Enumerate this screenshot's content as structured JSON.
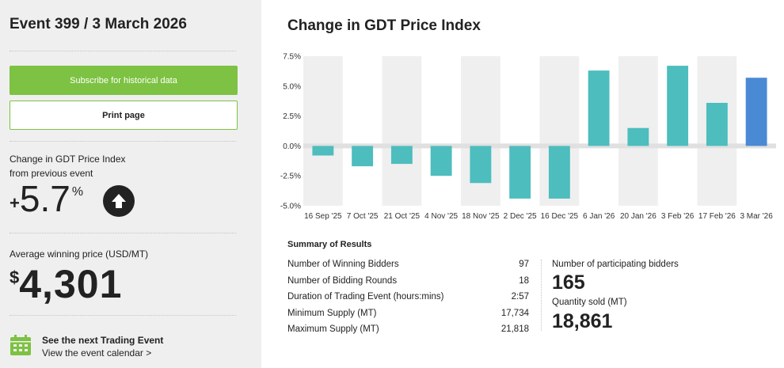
{
  "sidebar": {
    "event_title": "Event 399 / 3 March 2026",
    "subscribe_label": "Subscribe for historical data",
    "print_label": "Print page",
    "change_label_line1": "Change in GDT Price Index",
    "change_label_line2": "from previous event",
    "change_sign": "+",
    "change_value": "5.7",
    "change_unit": "%",
    "avg_label": "Average winning price (USD/MT)",
    "avg_currency": "$",
    "avg_value": "4,301",
    "next_event_title": "See the next Trading Event",
    "next_event_link": "View the event calendar >"
  },
  "main": {
    "chart_title": "Change in GDT Price Index",
    "summary": {
      "title": "Summary of Results",
      "rows": [
        {
          "label": "Number of Winning Bidders",
          "value": "97"
        },
        {
          "label": "Number of Bidding Rounds",
          "value": "18"
        },
        {
          "label": "Duration of Trading Event (hours:mins)",
          "value": "2:57"
        },
        {
          "label": "Minimum Supply (MT)",
          "value": "17,734"
        },
        {
          "label": "Maximum Supply (MT)",
          "value": "21,818"
        }
      ],
      "participating_label": "Number of participating bidders",
      "participating_value": "165",
      "quantity_label": "Quantity sold (MT)",
      "quantity_value": "18,861"
    }
  },
  "colors": {
    "accent_green": "#7dc242",
    "bar_teal": "#4dbdbe",
    "bar_highlight": "#4a8ad4"
  },
  "chart_data": {
    "type": "bar",
    "title": "Change in GDT Price Index",
    "categories": [
      "16 Sep '25",
      "7 Oct '25",
      "21 Oct '25",
      "4 Nov '25",
      "18 Nov '25",
      "2 Dec '25",
      "16 Dec '25",
      "6 Jan '26",
      "20 Jan '26",
      "3 Feb '26",
      "17 Feb '26",
      "3 Mar '26"
    ],
    "values": [
      -0.8,
      -1.7,
      -1.5,
      -2.5,
      -3.1,
      -4.4,
      -4.4,
      6.3,
      1.5,
      6.7,
      3.6,
      5.7
    ],
    "ylim": [
      -5.0,
      7.5
    ],
    "yticks": [
      -5.0,
      -2.5,
      0.0,
      2.5,
      5.0,
      7.5
    ],
    "ytick_labels": [
      "-5.0%",
      "-2.5%",
      "0.0%",
      "2.5%",
      "5.0%",
      "7.5%"
    ],
    "xlabel": "",
    "ylabel": "",
    "highlight_index": 11,
    "grid": false,
    "legend": "none"
  }
}
